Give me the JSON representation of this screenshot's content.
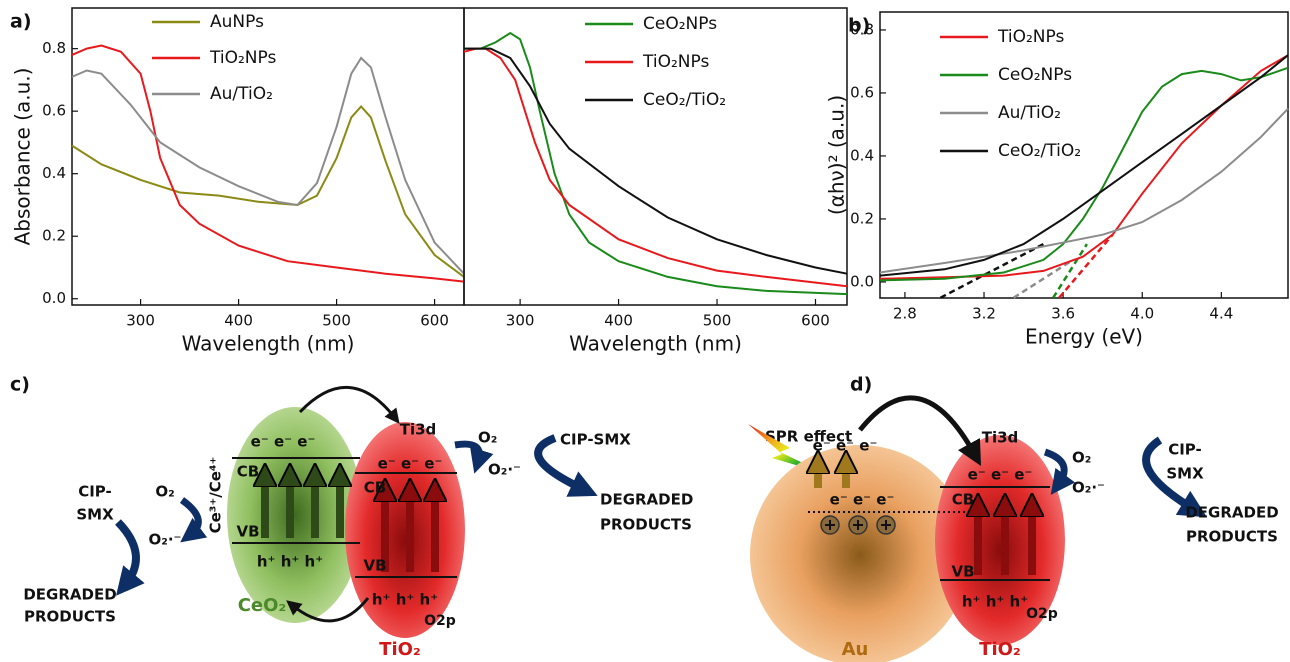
{
  "chart_data": [
    {
      "type": "line",
      "panel_label": "a)",
      "xlabel": "Wavelength (nm)",
      "ylabel": "Absorbance (a.u.)",
      "xlim": [
        230,
        630
      ],
      "ylim": [
        -0.02,
        0.93
      ],
      "xticks": [
        300,
        400,
        500,
        600
      ],
      "yticks": [
        {
          "value": 0,
          "label": "0.0"
        },
        0.2,
        0.4,
        0.6,
        0.8
      ],
      "legend": "upper center",
      "series": [
        {
          "name": "AuNPs",
          "color": "#8a8a14",
          "x": [
            230,
            260,
            300,
            340,
            380,
            420,
            460,
            480,
            500,
            515,
            525,
            535,
            550,
            570,
            600,
            630
          ],
          "values": [
            0.49,
            0.43,
            0.38,
            0.34,
            0.33,
            0.31,
            0.3,
            0.33,
            0.45,
            0.58,
            0.615,
            0.58,
            0.44,
            0.27,
            0.14,
            0.07
          ]
        },
        {
          "name": "TiO₂NPs",
          "color": "#e8191c",
          "x": [
            230,
            245,
            260,
            280,
            300,
            310,
            320,
            340,
            360,
            400,
            450,
            500,
            550,
            600,
            630
          ],
          "values": [
            0.78,
            0.8,
            0.81,
            0.79,
            0.72,
            0.6,
            0.45,
            0.3,
            0.24,
            0.17,
            0.12,
            0.1,
            0.08,
            0.065,
            0.055
          ]
        },
        {
          "name": "Au/TiO₂",
          "color": "#8c8c8c",
          "x": [
            230,
            245,
            260,
            290,
            320,
            360,
            400,
            440,
            460,
            480,
            500,
            515,
            525,
            535,
            550,
            570,
            600,
            630
          ],
          "values": [
            0.71,
            0.73,
            0.72,
            0.62,
            0.5,
            0.42,
            0.36,
            0.31,
            0.3,
            0.37,
            0.55,
            0.72,
            0.77,
            0.74,
            0.58,
            0.38,
            0.18,
            0.08
          ]
        }
      ]
    },
    {
      "type": "line",
      "xlabel": "Wavelength (nm)",
      "xlim": [
        243,
        632
      ],
      "ylim": [
        -0.02,
        0.93
      ],
      "xticks": [
        300,
        400,
        500,
        600
      ],
      "legend": "upper right",
      "series": [
        {
          "name": "CeO₂NPs",
          "color": "#1a8a1a",
          "x": [
            243,
            260,
            275,
            290,
            300,
            310,
            320,
            335,
            350,
            370,
            400,
            450,
            500,
            550,
            632
          ],
          "values": [
            0.8,
            0.8,
            0.82,
            0.85,
            0.83,
            0.74,
            0.6,
            0.4,
            0.27,
            0.18,
            0.12,
            0.07,
            0.04,
            0.025,
            0.015
          ]
        },
        {
          "name": "TiO₂NPs",
          "color": "#e8191c",
          "x": [
            243,
            255,
            265,
            280,
            295,
            305,
            315,
            330,
            350,
            400,
            450,
            500,
            550,
            632
          ],
          "values": [
            0.79,
            0.8,
            0.8,
            0.77,
            0.7,
            0.6,
            0.5,
            0.38,
            0.3,
            0.19,
            0.13,
            0.09,
            0.07,
            0.04
          ]
        },
        {
          "name": "CeO₂/TiO₂",
          "color": "#111111",
          "x": [
            243,
            270,
            290,
            310,
            330,
            350,
            400,
            450,
            500,
            550,
            600,
            632
          ],
          "values": [
            0.8,
            0.8,
            0.77,
            0.68,
            0.56,
            0.48,
            0.36,
            0.26,
            0.19,
            0.14,
            0.1,
            0.08
          ]
        }
      ]
    },
    {
      "type": "line",
      "panel_label": "b)",
      "xlabel": "Energy (eV)",
      "ylabel": "(αhν)² (a.u.)",
      "xlim": [
        2.674,
        4.737
      ],
      "ylim": [
        -0.051,
        0.857
      ],
      "xticks": [
        2.8,
        3.2,
        3.6,
        {
          "value": 4,
          "label": "4.0"
        },
        4.4
      ],
      "yticks": [
        {
          "value": 0,
          "label": "0.0"
        },
        0.2,
        0.4,
        0.6,
        0.8
      ],
      "legend": "upper left",
      "series": [
        {
          "name": "TiO₂NPs",
          "color": "#e8191c",
          "x": [
            2.674,
            3.0,
            3.3,
            3.5,
            3.7,
            3.85,
            4.0,
            4.2,
            4.4,
            4.6,
            4.737
          ],
          "values": [
            0.01,
            0.015,
            0.02,
            0.035,
            0.08,
            0.15,
            0.28,
            0.44,
            0.56,
            0.67,
            0.72
          ]
        },
        {
          "name": "CeO₂NPs",
          "color": "#1a8a1a",
          "x": [
            2.674,
            3.0,
            3.3,
            3.5,
            3.6,
            3.7,
            3.8,
            3.9,
            4.0,
            4.1,
            4.2,
            4.3,
            4.4,
            4.5,
            4.6,
            4.737
          ],
          "values": [
            0.005,
            0.01,
            0.03,
            0.07,
            0.12,
            0.2,
            0.3,
            0.42,
            0.54,
            0.62,
            0.66,
            0.67,
            0.66,
            0.64,
            0.65,
            0.68
          ]
        },
        {
          "name": "Au/TiO₂",
          "color": "#8c8c8c",
          "x": [
            2.674,
            3.0,
            3.4,
            3.8,
            4.0,
            4.2,
            4.4,
            4.6,
            4.737
          ],
          "values": [
            0.03,
            0.06,
            0.1,
            0.15,
            0.19,
            0.26,
            0.35,
            0.46,
            0.55
          ]
        },
        {
          "name": "CeO₂/TiO₂",
          "color": "#111111",
          "x": [
            2.674,
            3.0,
            3.2,
            3.4,
            3.6,
            3.8,
            4.0,
            4.2,
            4.4,
            4.6,
            4.737
          ],
          "values": [
            0.02,
            0.04,
            0.07,
            0.12,
            0.2,
            0.29,
            0.38,
            0.47,
            0.56,
            0.65,
            0.72
          ]
        }
      ],
      "fits": [
        {
          "color": "#111111",
          "x": [
            2.98,
            3.5
          ],
          "values": [
            -0.05,
            0.12
          ]
        },
        {
          "color": "#8c8c8c",
          "x": [
            3.35,
            3.65
          ],
          "values": [
            -0.05,
            0.07
          ]
        },
        {
          "color": "#1a8a1a",
          "x": [
            3.55,
            3.72
          ],
          "values": [
            -0.05,
            0.12
          ]
        },
        {
          "color": "#e8191c",
          "x": [
            3.58,
            3.85
          ],
          "values": [
            -0.05,
            0.15
          ]
        }
      ]
    }
  ],
  "diagrams": {
    "c": {
      "label": "c)",
      "couple": "Ce³⁺/Ce⁴⁺",
      "ceo2": "CeO₂",
      "tio2": "TiO₂",
      "cb1": "CB",
      "vb1": "VB",
      "cb2": "CB",
      "vb2": "VB",
      "e1": "e⁻ e⁻ e⁻",
      "h1": "h⁺ h⁺ h⁺",
      "e2": "e⁻ e⁻ e⁻",
      "h2": "h⁺ h⁺ h⁺",
      "ti3d": "Ti3d",
      "o2p": "O2p",
      "o2_right": "O₂",
      "rad_right": "O₂·⁻",
      "cip_right": "CIP-SMX",
      "deg_right_1": "DEGRADED",
      "deg_right_2": "PRODUCTS",
      "o2_left": "O₂",
      "rad_left": "O₂·⁻",
      "cip_left_1": "CIP-",
      "cip_left_2": "SMX",
      "deg_left_1": "DEGRADED",
      "deg_left_2": "PRODUCTS"
    },
    "d": {
      "label": "d)",
      "spr": "SPR effect",
      "au": "Au",
      "tio2": "TiO₂",
      "e_au_top": "e⁻ e⁻ e⁻",
      "e_au_mid": "e⁻ e⁻ e⁻",
      "cb": "CB",
      "vb": "VB",
      "e_ti": "e⁻ e⁻ e⁻",
      "h_ti": "h⁺ h⁺ h⁺",
      "ti3d": "Ti3d",
      "o2p": "O2p",
      "o2": "O₂",
      "rad": "O₂·⁻",
      "cip_1": "CIP-",
      "cip_2": "SMX",
      "deg_1": "DEGRADED",
      "deg_2": "PRODUCTS"
    }
  }
}
